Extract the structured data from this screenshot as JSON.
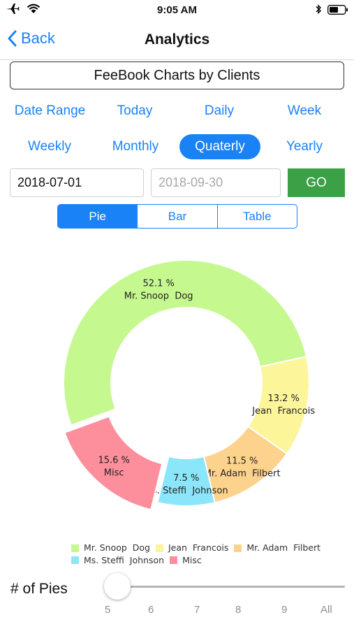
{
  "status_bar": {
    "time": "9:05 AM"
  },
  "nav": {
    "back_label": "Back",
    "title": "Analytics"
  },
  "chart_title": "FeeBook Charts by Clients",
  "ranges_row1": [
    "Date Range",
    "Today",
    "Daily",
    "Week"
  ],
  "ranges_row2": [
    "Weekly",
    "Monthly",
    "Quaterly",
    "Yearly"
  ],
  "selected_range": "Quaterly",
  "dates": {
    "start": "2018-07-01",
    "end": "2018-09-30"
  },
  "go_label": "GO",
  "view_modes": [
    "Pie",
    "Bar",
    "Table"
  ],
  "selected_view": "Pie",
  "chart_data": {
    "type": "pie",
    "variant": "donut",
    "slices": [
      {
        "label": "Mr. Snoop  Dog",
        "value": 52.1,
        "value_label": "52.1 %",
        "color": "#c6f890"
      },
      {
        "label": "Jean  Francois",
        "value": 13.2,
        "value_label": "13.2 %",
        "color": "#fdf59a"
      },
      {
        "label": "Mr. Adam  Filbert",
        "value": 11.5,
        "value_label": "11.5 %",
        "color": "#fdd28c"
      },
      {
        "label": "Ms. Steffi  Johnson",
        "value": 7.5,
        "value_label": "7.5 %",
        "color": "#8ce6fa"
      },
      {
        "label": "Misc",
        "value": 15.6,
        "value_label": "15.6 %",
        "color": "#fd8e9c",
        "exploded": true
      }
    ],
    "legend_position": "bottom"
  },
  "slider": {
    "label": "# of Pies",
    "ticks": [
      "5",
      "6",
      "7",
      "8",
      "9",
      "All"
    ],
    "value": "5"
  },
  "colors": {
    "accent": "#1a82f7",
    "go": "#3ca046"
  }
}
